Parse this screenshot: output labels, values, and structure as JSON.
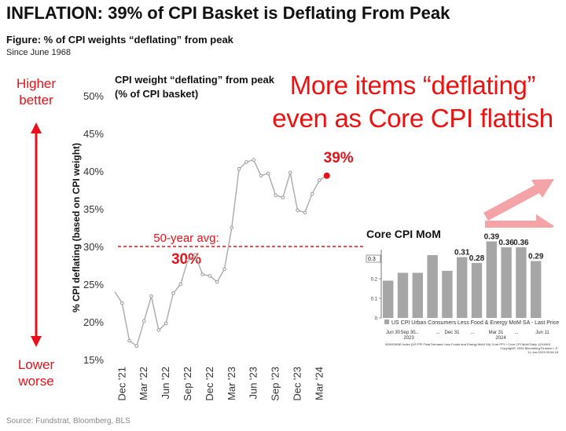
{
  "headline": "INFLATION: 39% of CPI Basket is Deflating From Peak",
  "figure_caption": "Figure: % of CPI weights “deflating” from peak",
  "since": "Since June 1968",
  "left_labels": {
    "top_line1": "Higher",
    "top_line2": "better",
    "bottom_line1": "Lower",
    "bottom_line2": "worse"
  },
  "callout": {
    "line1": "More items “deflating”",
    "line2": "even as Core CPI flattish"
  },
  "source": "Source: Fundstrat, Bloomberg, BLS",
  "colors": {
    "red": "#ee1111",
    "line": "#aaaaaa",
    "bar": "#a6a6a6",
    "pink_arrow": "#f4a3a6"
  },
  "chart_data": [
    {
      "type": "line",
      "title": "CPI weight “deflating” from peak",
      "subtitle": "(% of CPI basket)",
      "ylabel": "% CPI deflating (based on CPI weight)",
      "ylim": [
        15,
        50
      ],
      "yticks": [
        "15%",
        "20%",
        "25%",
        "30%",
        "35%",
        "40%",
        "45%",
        "50%"
      ],
      "xticks": [
        "Dec '21",
        "Mar '22",
        "Jun '22",
        "Sep '22",
        "Dec '22",
        "Mar '23",
        "Jun '23",
        "Sep '23",
        "Dec '23",
        "Mar '24"
      ],
      "values": [
        24.0,
        22.5,
        17.5,
        16.8,
        20.1,
        23.4,
        18.9,
        19.8,
        23.8,
        25.0,
        28.2,
        28.9,
        26.3,
        26.1,
        25.3,
        27.0,
        32.5,
        40.3,
        41.2,
        41.5,
        39.4,
        39.7,
        36.8,
        36.5,
        39.8,
        34.8,
        34.5,
        37.0,
        38.8,
        39.4
      ],
      "last_label": "39%",
      "average": 30,
      "average_label_line1": "50-year avg:",
      "average_label_line2": "30%",
      "grid": false
    },
    {
      "type": "bar",
      "title": "Core CPI MoM",
      "values": [
        0.19,
        0.23,
        0.23,
        0.32,
        0.24,
        0.31,
        0.28,
        0.39,
        0.36,
        0.36,
        0.29
      ],
      "data_labels": [
        "",
        "",
        "",
        "",
        "",
        "0.31",
        "0.28",
        "0.39",
        "0.36",
        "0.36",
        "0.29"
      ],
      "ylim": [
        0,
        0.4
      ],
      "yticks": [
        "0",
        "0.1",
        "0.2",
        "0.3"
      ],
      "current_tag": "0.3",
      "xticks": [
        "Jun 30",
        "Sep 30",
        "Dec 31",
        "Mar 31",
        "Jun 11"
      ],
      "xticks_gap": "...",
      "year_labels": [
        "2023",
        "2024"
      ],
      "legend": "US CPI Urban Consumers Less Food & Energy MoM SA - Last Price",
      "footnote1": "0000G0INE Index (US PPI Final Demand Less Foods and Energy MoM SA) Core PPI + Core CPI MoM  Daily 12JUN01",
      "footnote2": "Copyright© 2024 Bloomberg Finance L.P.",
      "footnote3": "11-Jun-2024 05:04:18"
    }
  ]
}
